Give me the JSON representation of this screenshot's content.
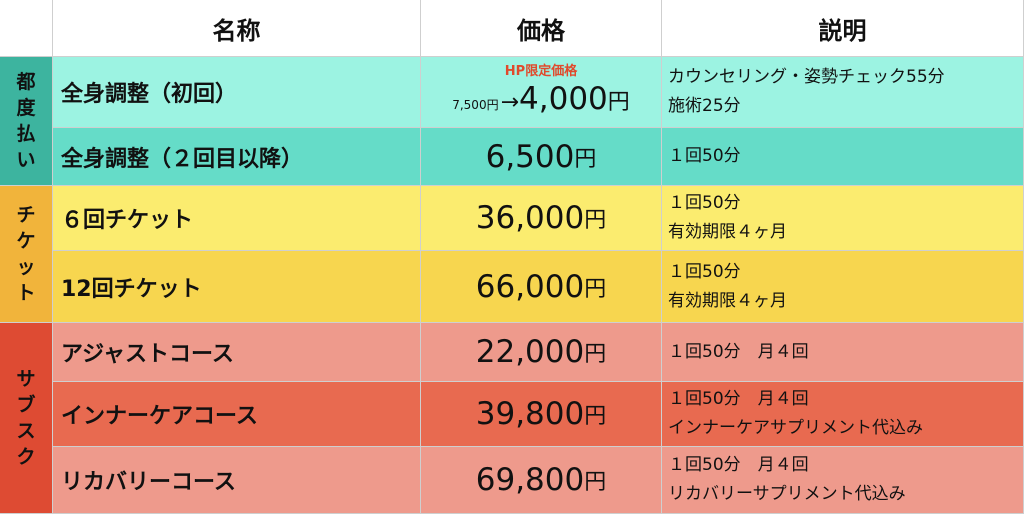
{
  "header": {
    "name": "名称",
    "price": "価格",
    "desc": "説明"
  },
  "groups": [
    {
      "chars": [
        "都",
        "度",
        "払",
        "い"
      ]
    },
    {
      "chars": [
        "チ",
        "ケ",
        "ッ",
        "ト"
      ]
    },
    {
      "chars": [
        "サ",
        "ブ",
        "ス",
        "ク"
      ]
    }
  ],
  "rows": [
    {
      "name": "全身調整（初回）",
      "hp_label": "HP限定価格",
      "orig_price": "7,500円",
      "arrow": "→",
      "price_num": "4,000",
      "price_unit": "円",
      "desc": [
        "カウンセリング・姿勢チェック55分",
        "施術25分"
      ]
    },
    {
      "name": "全身調整（２回目以降）",
      "price_num": "6,500",
      "price_unit": "円",
      "desc": [
        "１回50分"
      ]
    },
    {
      "name": "６回チケット",
      "price_num": "36,000",
      "price_unit": "円",
      "desc": [
        "１回50分",
        "有効期限４ヶ月"
      ]
    },
    {
      "name": "12回チケット",
      "price_num": "66,000",
      "price_unit": "円",
      "desc": [
        "１回50分",
        "有効期限４ヶ月"
      ]
    },
    {
      "name": "アジャストコース",
      "price_num": "22,000",
      "price_unit": "円",
      "desc": [
        "１回50分　月４回"
      ]
    },
    {
      "name": "インナーケアコース",
      "price_num": "39,800",
      "price_unit": "円",
      "desc": [
        "１回50分　月４回",
        "インナーケアサプリメント代込み"
      ]
    },
    {
      "name": "リカバリーコース",
      "price_num": "69,800",
      "price_unit": "円",
      "desc": [
        "１回50分　月４回",
        "リカバリーサプリメント代込み"
      ]
    }
  ]
}
